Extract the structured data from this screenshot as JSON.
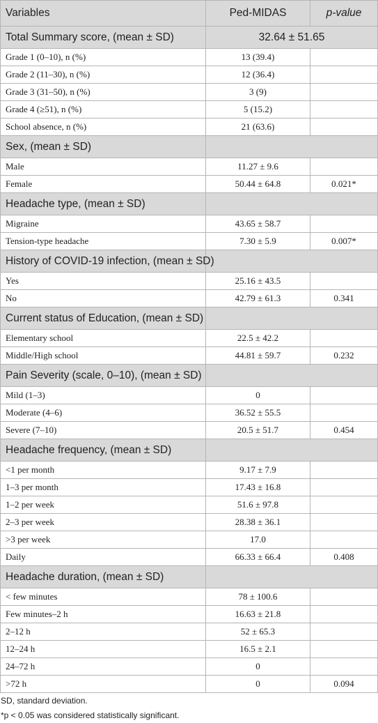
{
  "table": {
    "header": [
      "Variables",
      "Ped-MIDAS",
      "p-value"
    ],
    "sections": [
      {
        "title": "Total Summary score, (mean ± SD)",
        "value": "32.64 ± 51.65",
        "rows": [
          {
            "label": "Grade 1 (0–10), n (%)",
            "value": "13 (39.4)"
          },
          {
            "label": "Grade 2 (11–30), n (%)",
            "value": "12 (36.4)"
          },
          {
            "label": "Grade 3 (31–50), n (%)",
            "value": "3 (9)"
          },
          {
            "label": "Grade 4 (≥51), n (%)",
            "value": "5 (15.2)"
          },
          {
            "label": "School absence, n (%)",
            "value": "21 (63.6)"
          }
        ]
      },
      {
        "title": "Sex, (mean ± SD)",
        "rows": [
          {
            "label": "Male",
            "value": "11.27 ± 9.6"
          },
          {
            "label": "Female",
            "value": "50.44 ± 64.8",
            "p": "0.021*"
          }
        ]
      },
      {
        "title": "Headache type, (mean ± SD)",
        "rows": [
          {
            "label": "Migraine",
            "value": "43.65 ± 58.7"
          },
          {
            "label": "Tension-type headache",
            "value": "7.30 ± 5.9",
            "p": "0.007*"
          }
        ]
      },
      {
        "title": "History of COVID-19 infection, (mean ± SD)",
        "rows": [
          {
            "label": "Yes",
            "value": "25.16 ± 43.5"
          },
          {
            "label": "No",
            "value": "42.79 ± 61.3",
            "p": "0.341"
          }
        ]
      },
      {
        "title": "Current status of Education, (mean ± SD)",
        "rows": [
          {
            "label": "Elementary school",
            "value": "22.5 ± 42.2"
          },
          {
            "label": "Middle/High school",
            "value": "44.81 ± 59.7",
            "p": "0.232"
          }
        ]
      },
      {
        "title": "Pain Severity (scale, 0–10), (mean ± SD)",
        "rows": [
          {
            "label": "Mild (1–3)",
            "value": "0"
          },
          {
            "label": "Moderate (4–6)",
            "value": "36.52 ± 55.5"
          },
          {
            "label": "Severe (7–10)",
            "value": "20.5 ± 51.7",
            "p": "0.454"
          }
        ]
      },
      {
        "title": "Headache frequency, (mean ± SD)",
        "rows": [
          {
            "label": "<1 per month",
            "value": "9.17 ± 7.9"
          },
          {
            "label": "1–3 per month",
            "value": "17.43 ± 16.8"
          },
          {
            "label": "1–2 per week",
            "value": "51.6 ± 97.8"
          },
          {
            "label": "2–3 per week",
            "value": "28.38 ± 36.1"
          },
          {
            "label": ">3 per week",
            "value": "17.0"
          },
          {
            "label": "Daily",
            "value": "66.33 ± 66.4",
            "p": "0.408"
          }
        ]
      },
      {
        "title": "Headache duration, (mean ± SD)",
        "rows": [
          {
            "label": "< few minutes",
            "value": "78 ± 100.6"
          },
          {
            "label": "Few minutes–2 h",
            "value": "16.63 ± 21.8"
          },
          {
            "label": "2–12 h",
            "value": "52 ± 65.3"
          },
          {
            "label": "12–24 h",
            "value": "16.5 ± 2.1"
          },
          {
            "label": "24–72 h",
            "value": "0"
          },
          {
            "label": ">72 h",
            "value": "0",
            "p": "0.094"
          }
        ]
      }
    ],
    "footnotes": [
      "SD, standard deviation.",
      "*p < 0.05 was considered statistically significant."
    ]
  }
}
